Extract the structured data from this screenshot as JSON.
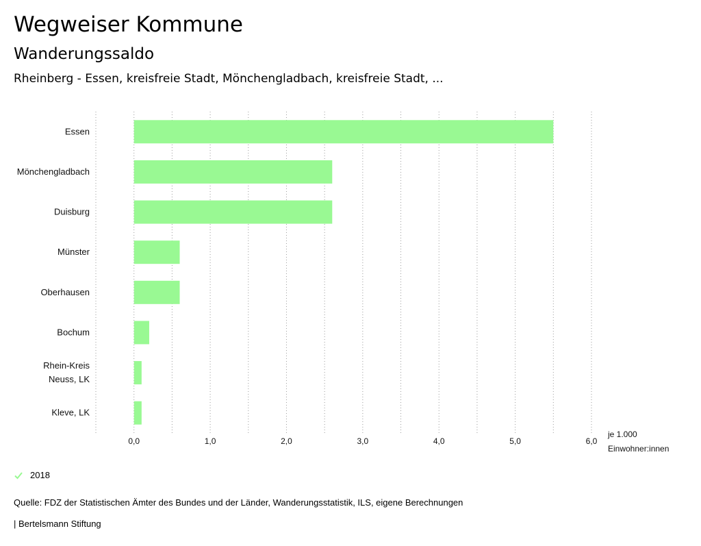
{
  "header": {
    "title": "Wegweiser Kommune",
    "subtitle": "Wanderungssaldo",
    "context": "Rheinberg - Essen, kreisfreie Stadt, Mönchengladbach, kreisfreie Stadt, ..."
  },
  "chart_data": {
    "type": "bar",
    "orientation": "horizontal",
    "categories": [
      "Essen",
      "Mönchengladbach",
      "Duisburg",
      "Münster",
      "Oberhausen",
      "Bochum",
      "Rhein-Kreis Neuss, LK",
      "Kleve, LK"
    ],
    "category_lines": [
      [
        "Essen"
      ],
      [
        "Mönchengladbach"
      ],
      [
        "Duisburg"
      ],
      [
        "Münster"
      ],
      [
        "Oberhausen"
      ],
      [
        "Bochum"
      ],
      [
        "Rhein-Kreis",
        "Neuss, LK"
      ],
      [
        "Kleve, LK"
      ]
    ],
    "series": [
      {
        "name": "2018",
        "values": [
          5.5,
          2.6,
          2.6,
          0.6,
          0.6,
          0.2,
          0.1,
          0.1
        ],
        "color": "#99f993"
      }
    ],
    "xlim": [
      -0.5,
      6.0
    ],
    "xticks": [
      0,
      1,
      2,
      3,
      4,
      5,
      6
    ],
    "xtick_labels": [
      "0,0",
      "1,0",
      "2,0",
      "3,0",
      "4,0",
      "5,0",
      "6,0"
    ],
    "xlabel_lines": [
      "je 1.000",
      "Einwohner:innen"
    ],
    "grid": true
  },
  "legend": {
    "label": "2018",
    "color": "#99f993",
    "icon": "check-icon"
  },
  "footer": {
    "source": "Quelle: FDZ der Statistischen Ämter des Bundes und der Länder, Wanderungsstatistik, ILS, eigene Berechnungen",
    "brand": "| Bertelsmann Stiftung"
  }
}
